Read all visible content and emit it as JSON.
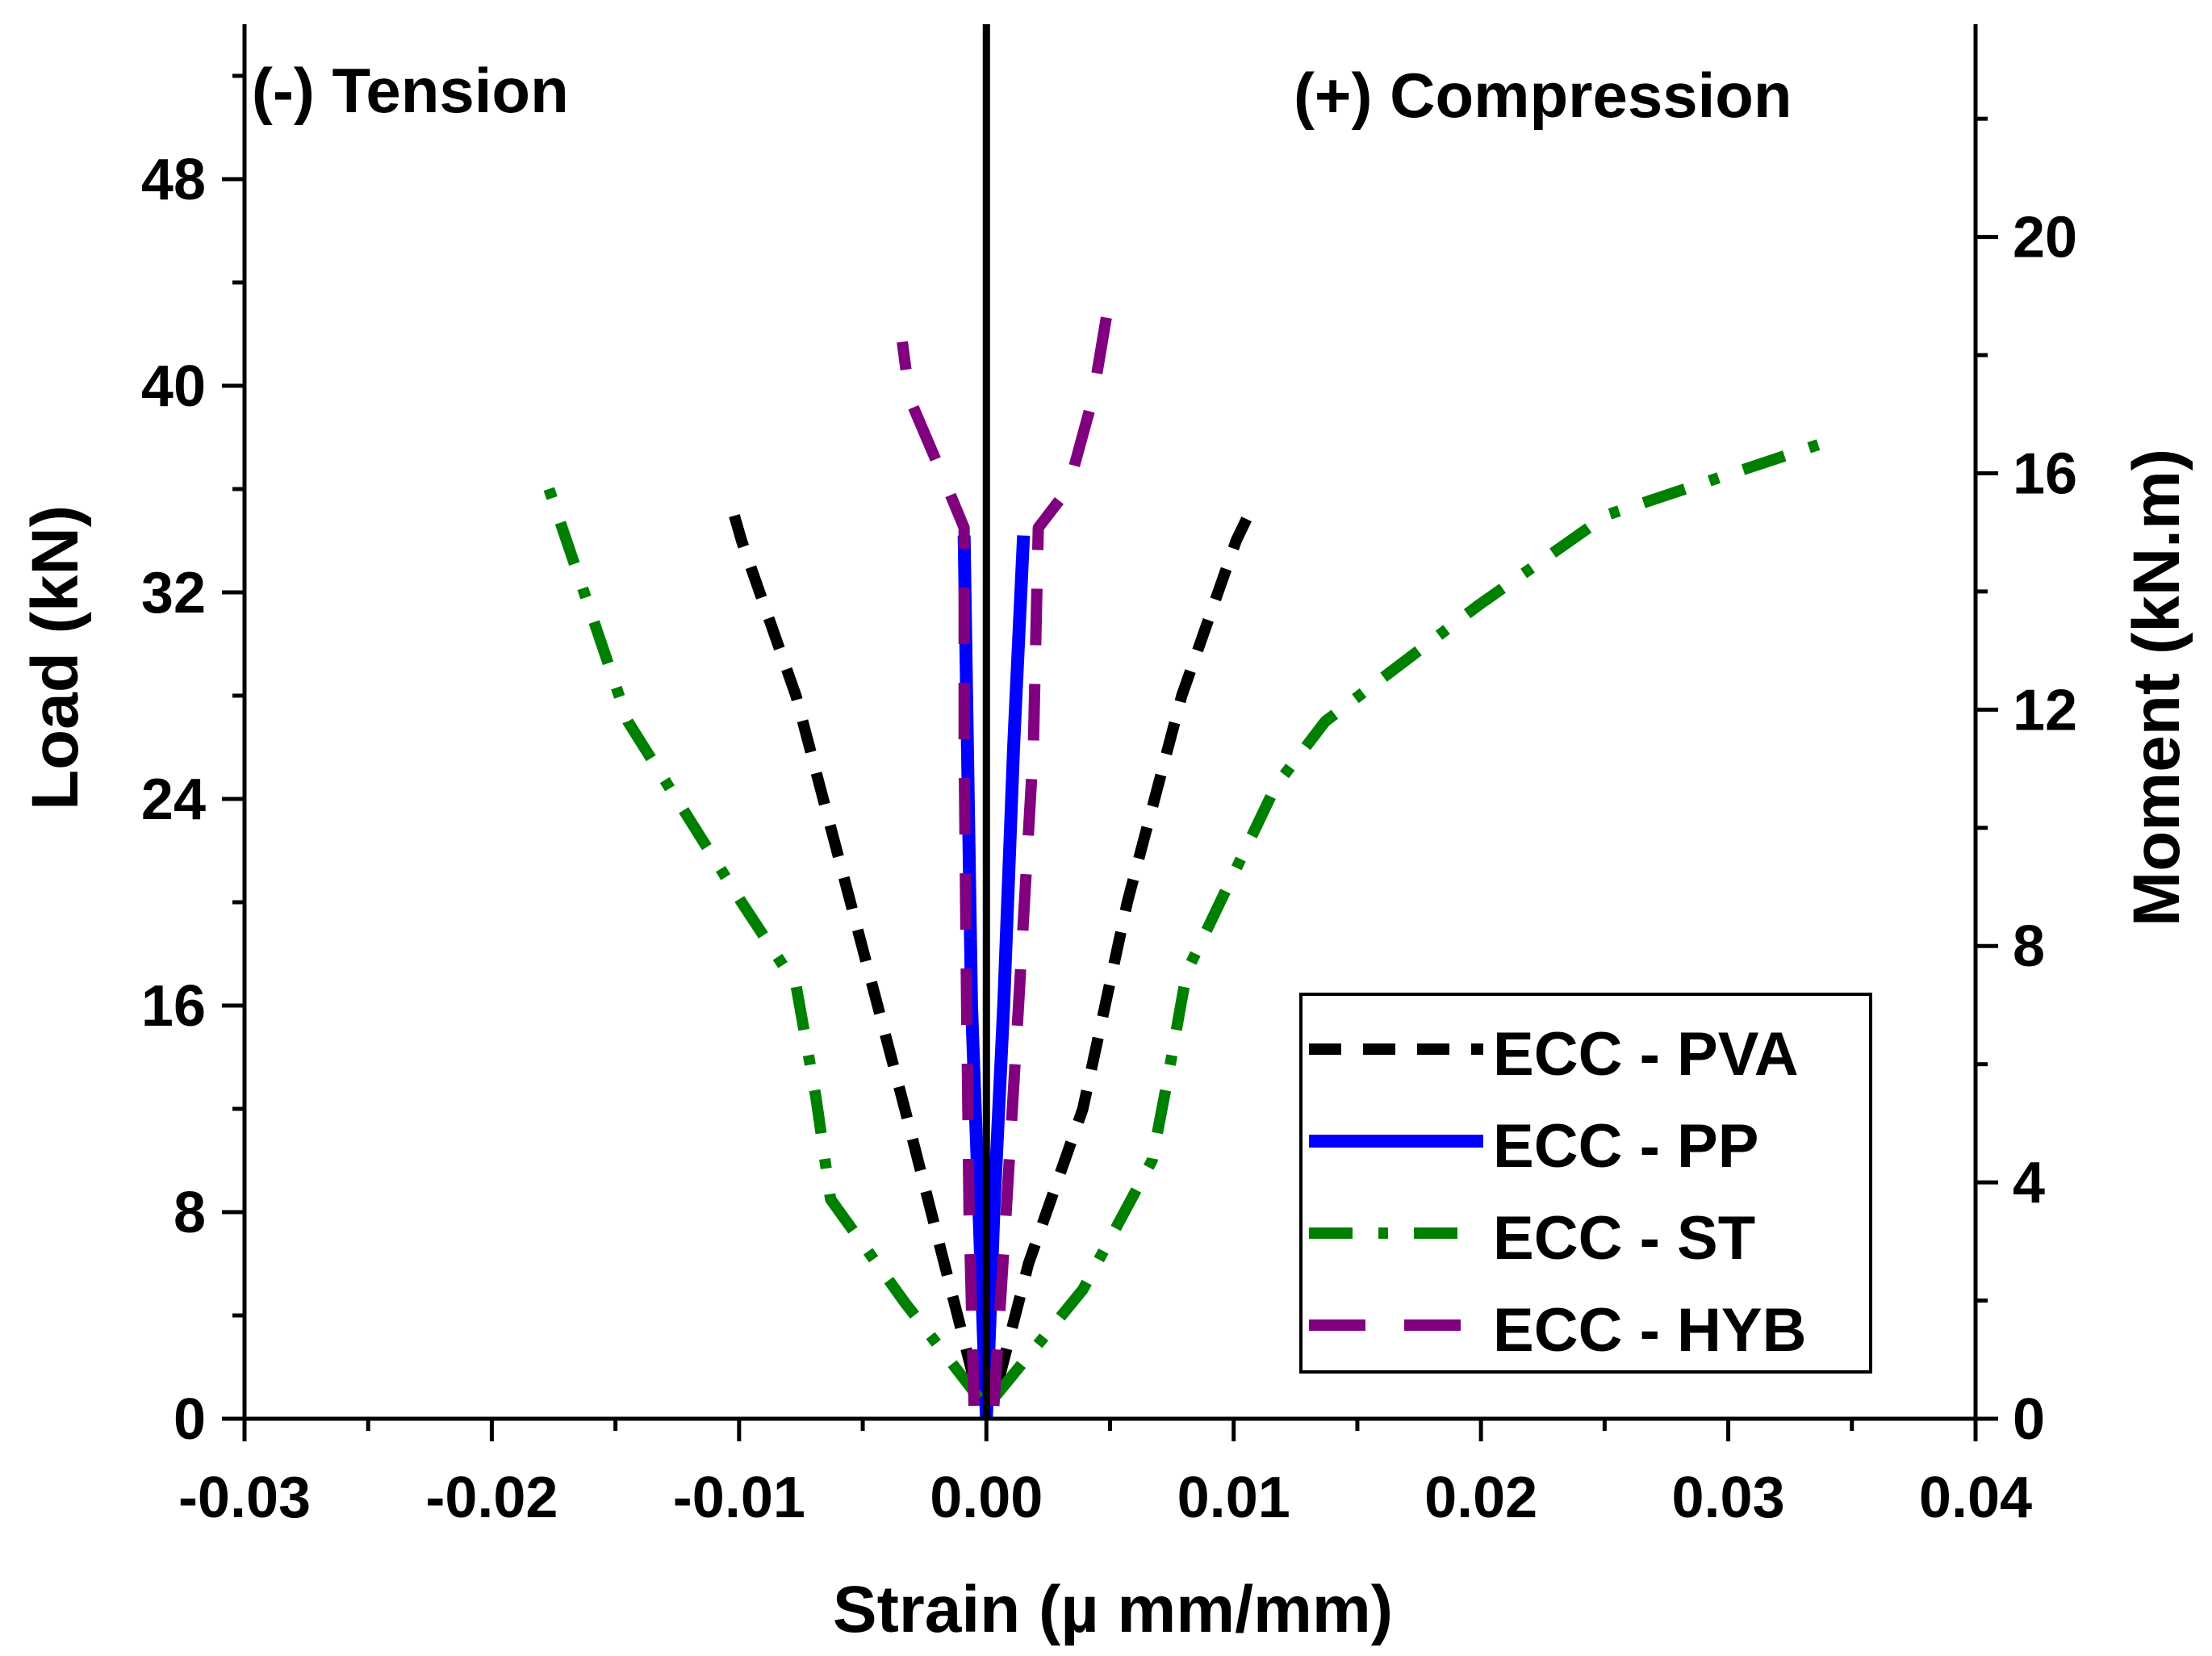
{
  "chart_data": {
    "type": "line",
    "title": "",
    "xlabel": "Strain (µ mm/mm)",
    "ylabel": "Load (kN)",
    "y2label": "Moment (kN.m)",
    "xlim": [
      -0.03,
      0.04
    ],
    "ylim": [
      0,
      54
    ],
    "y2lim": [
      0,
      23.6
    ],
    "x_ticks": [
      -0.03,
      -0.02,
      -0.01,
      0.0,
      0.01,
      0.02,
      0.03,
      0.04
    ],
    "x_tick_labels": [
      "-0.03",
      "-0.02",
      "-0.01",
      "0.00",
      "0.01",
      "0.02",
      "0.03",
      "0.04"
    ],
    "y_ticks": [
      0,
      8,
      16,
      24,
      32,
      40,
      48
    ],
    "y_tick_labels": [
      "0",
      "8",
      "16",
      "24",
      "32",
      "40",
      "48"
    ],
    "y2_ticks": [
      0,
      4,
      8,
      12,
      16,
      20
    ],
    "y2_tick_labels": [
      "0",
      "4",
      "8",
      "12",
      "16",
      "20"
    ],
    "annotations": [
      {
        "text": "(-) Tension",
        "x": -0.0233,
        "y": 50.6
      },
      {
        "text": "(+) Compression",
        "x": 0.0225,
        "y": 50.4
      }
    ],
    "zero_line_x": 0.0,
    "legend_position": "bottom-right",
    "series": [
      {
        "name": "ECC - PVA",
        "color": "#000000",
        "style": "dash",
        "branches": [
          {
            "x": [
              -0.0005,
              -0.0017,
              -0.0033,
              -0.0055,
              -0.0077,
              -0.0099,
              -0.0102
            ],
            "y": [
              1.5,
              6,
              12,
              20,
              28,
              34,
              35
            ]
          },
          {
            "x": [
              0.0005,
              0.0017,
              0.0039,
              0.0057,
              0.0079,
              0.0101,
              0.0106
            ],
            "y": [
              1.5,
              6,
              12,
              20,
              28,
              34,
              35
            ]
          }
        ]
      },
      {
        "name": "ECC - PP",
        "color": "#0000ff",
        "style": "solid",
        "branches": [
          {
            "x": [
              0.0,
              -0.0003,
              -0.0006,
              -0.0008,
              -0.0009
            ],
            "y": [
              0,
              8,
              16,
              28,
              34.2
            ]
          },
          {
            "x": [
              0.0,
              0.0003,
              0.0007,
              0.0011,
              0.0015
            ],
            "y": [
              0,
              8,
              16,
              26,
              34.2
            ]
          }
        ]
      },
      {
        "name": "ECC - ST",
        "color": "#008000",
        "style": "dashdot",
        "branches": [
          {
            "x": [
              -0.0003,
              -0.0033,
              -0.0063,
              -0.0069,
              -0.0077,
              -0.0099,
              -0.0145,
              -0.0179
            ],
            "y": [
              0.8,
              4.5,
              8.5,
              12.5,
              16.8,
              20,
              27,
              36.6
            ]
          },
          {
            "x": [
              0.0003,
              0.0039,
              0.0067,
              0.0073,
              0.0081,
              0.0117,
              0.0137,
              0.0199,
              0.0251,
              0.0339
            ],
            "y": [
              0.8,
              5,
              10,
              13,
              17.3,
              24.5,
              27,
              31.5,
              35,
              37.8
            ]
          }
        ]
      },
      {
        "name": "ECC - HYB",
        "color": "#800080",
        "style": "longdash",
        "branches": [
          {
            "x": [
              -0.0005,
              -0.0007,
              -0.0008,
              -0.0009,
              -0.0009,
              -0.0019,
              -0.0031,
              -0.0034
            ],
            "y": [
              0.5,
              8,
              16,
              26,
              34.5,
              36.8,
              39.5,
              41.7
            ]
          },
          {
            "x": [
              0.0003,
              0.0008,
              0.0013,
              0.0019,
              0.0021,
              0.0033,
              0.0043,
              0.005
            ],
            "y": [
              0.5,
              8,
              16,
              26,
              34.5,
              36,
              39.5,
              43.5
            ]
          }
        ]
      }
    ]
  }
}
